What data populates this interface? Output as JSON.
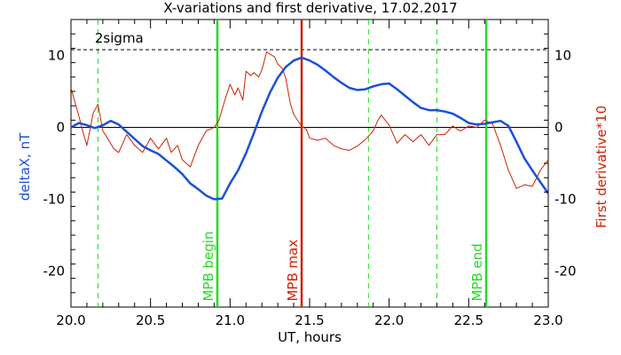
{
  "chart_data": {
    "type": "line",
    "title": "X-variations and first derivative, 17.02.2017",
    "xlabel": "UT, hours",
    "ylabel_left": "deltaX, nT",
    "ylabel_right": "First derivative*10",
    "xlim": [
      20.0,
      23.0
    ],
    "ylim": [
      -25,
      15
    ],
    "x_ticks": [
      "20.0",
      "20.5",
      "21.0",
      "21.5",
      "22.0",
      "22.5",
      "23.0"
    ],
    "y_ticks_left": [
      "-20",
      "-10",
      "0",
      "10"
    ],
    "y_ticks_right": [
      "-20",
      "-10",
      "0",
      "10"
    ],
    "sigma_label": "2sigma",
    "sigma_level": 10.8,
    "zero_line": 0,
    "colors": {
      "deltaX": "#1a50d8",
      "derivative": "#cc2200",
      "marker_green": "#22dd22",
      "marker_red": "#cc2200",
      "axes": "#000000"
    },
    "vertical_markers": [
      {
        "x": 20.92,
        "label": "MPB begin",
        "color": "#22dd22"
      },
      {
        "x": 21.45,
        "label": "MPB max",
        "color": "#cc2200"
      },
      {
        "x": 22.61,
        "label": "MPB end",
        "color": "#22dd22"
      }
    ],
    "dashed_markers": [
      20.17,
      20.92,
      21.87,
      22.3,
      22.61
    ],
    "series": [
      {
        "name": "deltaX, nT",
        "x": [
          20.0,
          20.05,
          20.1,
          20.15,
          20.2,
          20.25,
          20.3,
          20.35,
          20.4,
          20.45,
          20.5,
          20.55,
          20.6,
          20.65,
          20.7,
          20.75,
          20.8,
          20.85,
          20.9,
          20.95,
          21.0,
          21.05,
          21.1,
          21.15,
          21.2,
          21.25,
          21.3,
          21.35,
          21.4,
          21.45,
          21.5,
          21.55,
          21.6,
          21.65,
          21.7,
          21.75,
          21.8,
          21.85,
          21.9,
          21.95,
          22.0,
          22.05,
          22.1,
          22.15,
          22.2,
          22.25,
          22.3,
          22.35,
          22.4,
          22.45,
          22.5,
          22.55,
          22.6,
          22.65,
          22.7,
          22.75,
          22.8,
          22.85,
          22.9,
          22.95,
          23.0
        ],
        "y": [
          0,
          0.6,
          0.3,
          -0.1,
          0.3,
          0.9,
          0.4,
          -0.6,
          -1.6,
          -2.6,
          -3.2,
          -3.7,
          -4.6,
          -5.5,
          -6.5,
          -7.8,
          -8.6,
          -9.5,
          -10.0,
          -9.9,
          -7.8,
          -6.0,
          -3.6,
          -0.8,
          2.2,
          4.8,
          6.9,
          8.4,
          9.3,
          9.7,
          9.3,
          8.7,
          7.9,
          7.0,
          6.2,
          5.5,
          5.2,
          5.3,
          5.7,
          6.0,
          6.1,
          5.3,
          4.4,
          3.5,
          2.7,
          2.4,
          2.4,
          2.2,
          1.9,
          1.3,
          0.6,
          0.4,
          0.5,
          0.7,
          0.9,
          0.2,
          -2.0,
          -4.3,
          -6.0,
          -7.6,
          -9.2
        ]
      },
      {
        "name": "First derivative*10",
        "x": [
          20.0,
          20.05,
          20.08,
          20.1,
          20.14,
          20.17,
          20.2,
          20.23,
          20.27,
          20.3,
          20.35,
          20.4,
          20.45,
          20.5,
          20.55,
          20.6,
          20.63,
          20.67,
          20.7,
          20.75,
          20.8,
          20.85,
          20.9,
          20.93,
          20.97,
          21.0,
          21.03,
          21.05,
          21.08,
          21.1,
          21.13,
          21.15,
          21.18,
          21.2,
          21.23,
          21.25,
          21.28,
          21.3,
          21.33,
          21.35,
          21.38,
          21.4,
          21.43,
          21.45,
          21.48,
          21.5,
          21.55,
          21.6,
          21.65,
          21.7,
          21.75,
          21.8,
          21.85,
          21.9,
          21.93,
          21.95,
          22.0,
          22.05,
          22.1,
          22.15,
          22.2,
          22.25,
          22.3,
          22.35,
          22.4,
          22.43,
          22.45,
          22.5,
          22.55,
          22.6,
          22.65,
          22.7,
          22.75,
          22.8,
          22.85,
          22.9,
          22.95,
          23.0
        ],
        "y": [
          5.5,
          1.5,
          -1.0,
          -2.5,
          2.0,
          3.2,
          -0.5,
          -1.5,
          -3.0,
          -3.5,
          -1.0,
          -2.5,
          -3.5,
          -1.5,
          -3.0,
          -1.5,
          -3.5,
          -2.5,
          -4.5,
          -5.5,
          -2.5,
          -0.5,
          0.0,
          1.0,
          4.0,
          6.0,
          4.5,
          5.5,
          3.8,
          7.8,
          7.2,
          7.6,
          7.0,
          8.0,
          10.5,
          10.2,
          9.8,
          8.8,
          8.2,
          6.8,
          3.2,
          1.8,
          0.8,
          0.2,
          -0.3,
          -1.5,
          -1.8,
          -1.5,
          -2.5,
          -3.0,
          -3.2,
          -2.6,
          -1.7,
          -0.5,
          1.0,
          1.7,
          0.3,
          -2.2,
          -1.0,
          -2.0,
          -1.0,
          -2.5,
          -1.0,
          -1.0,
          0.2,
          -0.3,
          -0.5,
          0.2,
          0.0,
          1.0,
          0.5,
          -2.5,
          -6.0,
          -8.5,
          -8.0,
          -8.2,
          -6.0,
          -4.5
        ]
      }
    ]
  }
}
